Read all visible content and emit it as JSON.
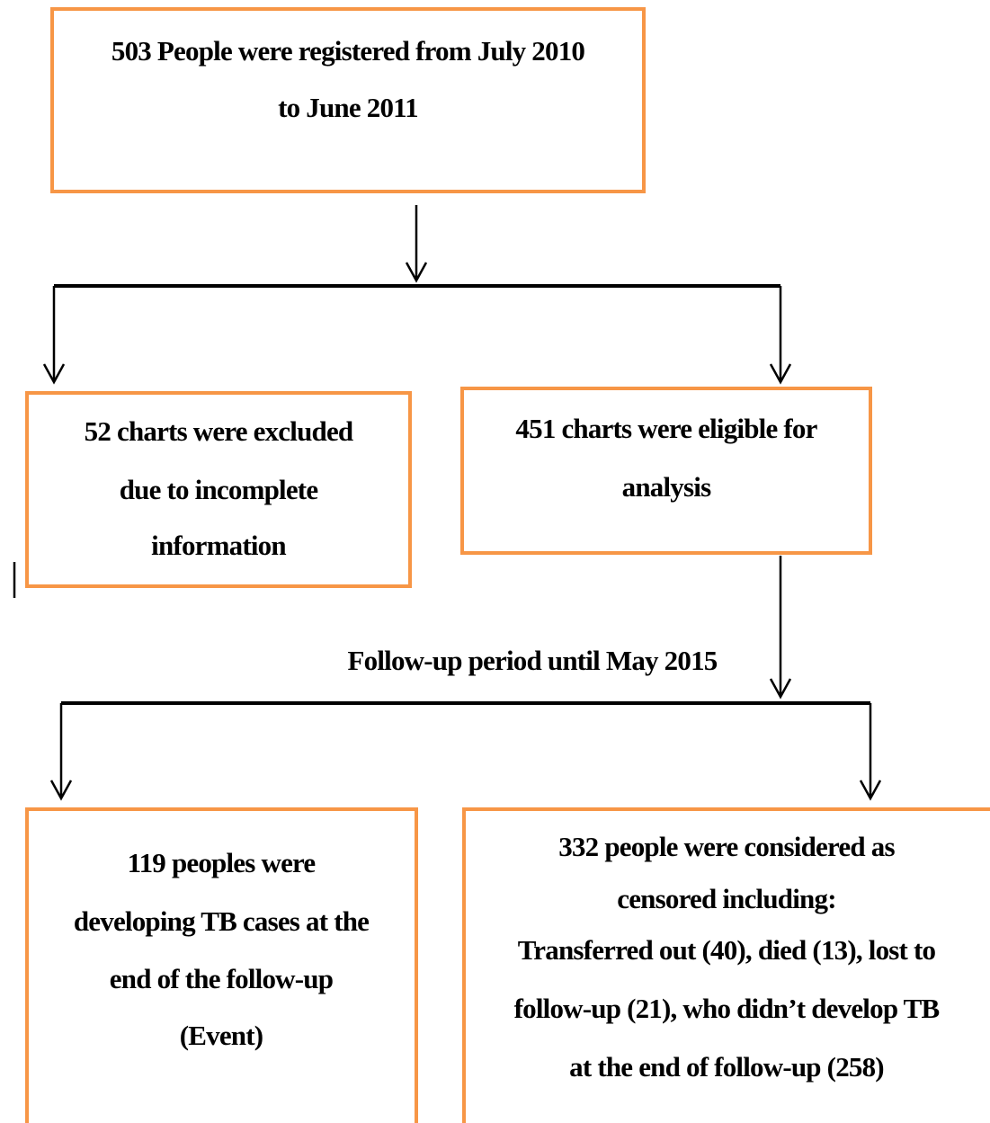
{
  "nodes": [
    {
      "lines": [
        "503 People were registered from July 2010",
        "to June 2011"
      ]
    },
    {
      "lines": [
        "52 charts were excluded",
        "due to incomplete",
        "information"
      ]
    },
    {
      "lines": [
        "451 charts were eligible for",
        "analysis"
      ]
    },
    {
      "lines": [
        "119 peoples were",
        "developing TB cases at the",
        "end of the follow-up",
        "(Event)"
      ]
    },
    {
      "lines": [
        "332 people were considered as",
        "censored including:",
        "Transferred out (40), died (13), lost to",
        "follow-up (21), who didn’t develop TB",
        "at the end of follow-up (258)"
      ]
    }
  ],
  "edge_label": "Follow-up period until May 2015"
}
